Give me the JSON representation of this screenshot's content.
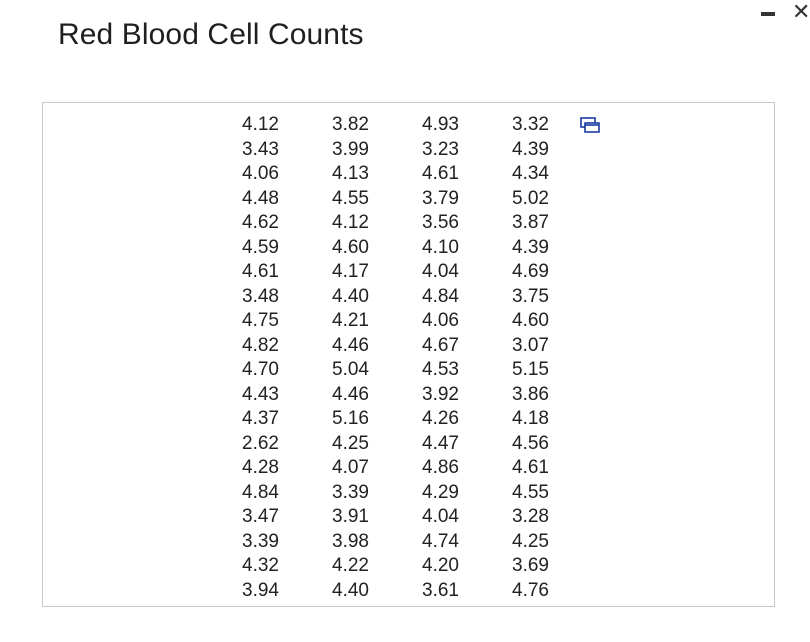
{
  "page": {
    "title": "Red Blood Cell Counts"
  },
  "window": {
    "minimize_icon": "minimize-icon",
    "close_icon": "close-icon"
  },
  "table": {
    "copy_icon": "copy-icon",
    "rows": [
      [
        "4.12",
        "3.82",
        "4.93",
        "3.32"
      ],
      [
        "3.43",
        "3.99",
        "3.23",
        "4.39"
      ],
      [
        "4.06",
        "4.13",
        "4.61",
        "4.34"
      ],
      [
        "4.48",
        "4.55",
        "3.79",
        "5.02"
      ],
      [
        "4.62",
        "4.12",
        "3.56",
        "3.87"
      ],
      [
        "4.59",
        "4.60",
        "4.10",
        "4.39"
      ],
      [
        "4.61",
        "4.17",
        "4.04",
        "4.69"
      ],
      [
        "3.48",
        "4.40",
        "4.84",
        "3.75"
      ],
      [
        "4.75",
        "4.21",
        "4.06",
        "4.60"
      ],
      [
        "4.82",
        "4.46",
        "4.67",
        "3.07"
      ],
      [
        "4.70",
        "5.04",
        "4.53",
        "5.15"
      ],
      [
        "4.43",
        "4.46",
        "3.92",
        "3.86"
      ],
      [
        "4.37",
        "5.16",
        "4.26",
        "4.18"
      ],
      [
        "2.62",
        "4.25",
        "4.47",
        "4.56"
      ],
      [
        "4.28",
        "4.07",
        "4.86",
        "4.61"
      ],
      [
        "4.84",
        "3.39",
        "4.29",
        "4.55"
      ],
      [
        "3.47",
        "3.91",
        "4.04",
        "3.28"
      ],
      [
        "3.39",
        "3.98",
        "4.74",
        "4.25"
      ],
      [
        "4.32",
        "4.22",
        "4.20",
        "3.69"
      ],
      [
        "3.94",
        "4.40",
        "3.61",
        "4.76"
      ]
    ]
  }
}
